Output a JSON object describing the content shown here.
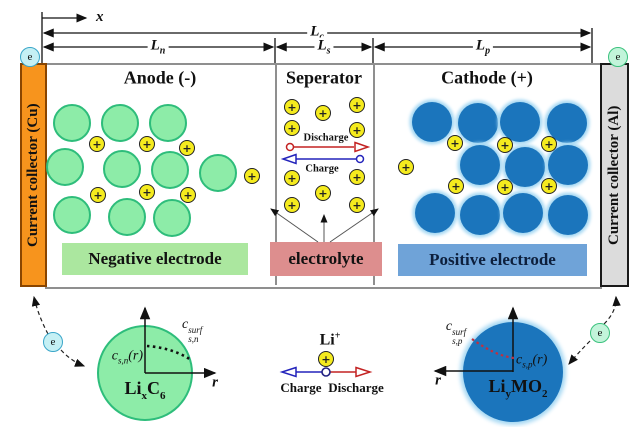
{
  "icons": {
    "plus": "+",
    "electron": "e"
  },
  "axes": {
    "x_label": "x",
    "r_label": "r"
  },
  "dims": {
    "lc": {
      "base": "L",
      "sub": "c"
    },
    "ln": {
      "base": "L",
      "sub": "n"
    },
    "ls": {
      "base": "L",
      "sub": "s"
    },
    "lp": {
      "base": "L",
      "sub": "p"
    }
  },
  "collectors": {
    "left": "Current collector (Cu)",
    "right": "Current collector (Al)"
  },
  "regions": {
    "anode": "Anode (-)",
    "separator": "Seperator",
    "cathode": "Cathode (+)"
  },
  "electrode_labels": {
    "negative": "Negative electrode",
    "electrolyte": "electrolyte",
    "positive": "Positive electrode"
  },
  "separator_flow": {
    "discharge": "Discharge",
    "charge": "Charge"
  },
  "li_ion_flow": {
    "species_base": "Li",
    "species_sup": "+",
    "charge": "Charge",
    "discharge": "Discharge"
  },
  "anode_particle": {
    "conc": {
      "base": "c",
      "sub": "s,n",
      "arg": "(r)"
    },
    "surf": {
      "base": "c",
      "sub": "s,n",
      "sup": "surf"
    },
    "formula": {
      "p1": "Li",
      "s1": "x",
      "p2": "C",
      "s2": "6"
    }
  },
  "cathode_particle": {
    "conc": {
      "base": "c",
      "sub": "s,p",
      "arg": "(r)"
    },
    "surf": {
      "base": "c",
      "sub": "s,p",
      "sup": "surf"
    },
    "formula": {
      "p1": "Li",
      "s1": "y",
      "p2": "MO",
      "s2": "2"
    }
  },
  "colors": {
    "copper": "#F7941D",
    "copper_border": "#8A4500",
    "aluminum": "#DCDCDC",
    "aluminum_border": "#1a1a1a",
    "anode_fill": "#8DECA8",
    "anode_stroke": "#2EBD7B",
    "cathode_fill": "#1B75BC",
    "cathode_glow": "#A5D8F3",
    "ion_fill": "#F5EB1E",
    "negative_bg": "#ABE79F",
    "electrolyte_bg": "#DD8E8E",
    "positive_bg": "#6FA3D8",
    "discharge_red": "#C32222",
    "charge_blue": "#2323BB",
    "electron_cyan": "#C5F0F4",
    "electron_cyan_ring": "#3AA6C9",
    "electron_green": "#C2F4DA",
    "electron_green_ring": "#3CC27E"
  }
}
